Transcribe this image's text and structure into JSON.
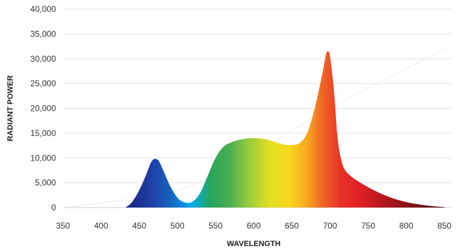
{
  "chart_data": {
    "type": "area",
    "title": "",
    "xlabel": "WAVELENGTH",
    "ylabel": "RADIANT POWER",
    "xlim": [
      350,
      850
    ],
    "ylim": [
      0,
      40000
    ],
    "xticks": [
      350,
      400,
      450,
      500,
      550,
      600,
      650,
      700,
      750,
      800,
      850
    ],
    "yticks": [
      0,
      5000,
      10000,
      15000,
      20000,
      25000,
      30000,
      35000,
      40000
    ],
    "ytick_labels": [
      "0",
      "5,000",
      "10,000",
      "15,000",
      "20,000",
      "25,000",
      "30,000",
      "35,000",
      "40,000"
    ],
    "xtick_labels": [
      "350",
      "400",
      "450",
      "500",
      "550",
      "600",
      "650",
      "700",
      "750",
      "800",
      "850"
    ],
    "grid": true,
    "legend": "none",
    "fill": "visible-spectrum gradient",
    "series": [
      {
        "values": [
          [
            432,
            0
          ],
          [
            440,
            1000
          ],
          [
            450,
            3500
          ],
          [
            460,
            7000
          ],
          [
            465,
            9000
          ],
          [
            470,
            9800
          ],
          [
            475,
            9500
          ],
          [
            480,
            8000
          ],
          [
            490,
            4500
          ],
          [
            500,
            2000
          ],
          [
            510,
            1000
          ],
          [
            520,
            1200
          ],
          [
            530,
            3000
          ],
          [
            540,
            6500
          ],
          [
            550,
            10000
          ],
          [
            560,
            12200
          ],
          [
            570,
            13100
          ],
          [
            580,
            13600
          ],
          [
            590,
            13900
          ],
          [
            600,
            14000
          ],
          [
            610,
            13900
          ],
          [
            620,
            13600
          ],
          [
            630,
            13100
          ],
          [
            640,
            12700
          ],
          [
            650,
            12600
          ],
          [
            660,
            13000
          ],
          [
            670,
            15000
          ],
          [
            680,
            20000
          ],
          [
            690,
            27000
          ],
          [
            695,
            31000
          ],
          [
            698,
            31400
          ],
          [
            700,
            30500
          ],
          [
            705,
            24000
          ],
          [
            710,
            14000
          ],
          [
            715,
            9500
          ],
          [
            720,
            7500
          ],
          [
            730,
            6000
          ],
          [
            740,
            5000
          ],
          [
            750,
            4100
          ],
          [
            760,
            3300
          ],
          [
            770,
            2600
          ],
          [
            780,
            2000
          ],
          [
            790,
            1500
          ],
          [
            800,
            1100
          ],
          [
            810,
            800
          ],
          [
            820,
            550
          ],
          [
            830,
            350
          ],
          [
            840,
            200
          ],
          [
            850,
            100
          ]
        ]
      }
    ],
    "reference_line": {
      "values": [
        [
          350,
          0
        ],
        [
          500,
          3500
        ],
        [
          600,
          11000
        ],
        [
          700,
          20000
        ],
        [
          800,
          28000
        ],
        [
          850,
          32000
        ]
      ]
    }
  }
}
